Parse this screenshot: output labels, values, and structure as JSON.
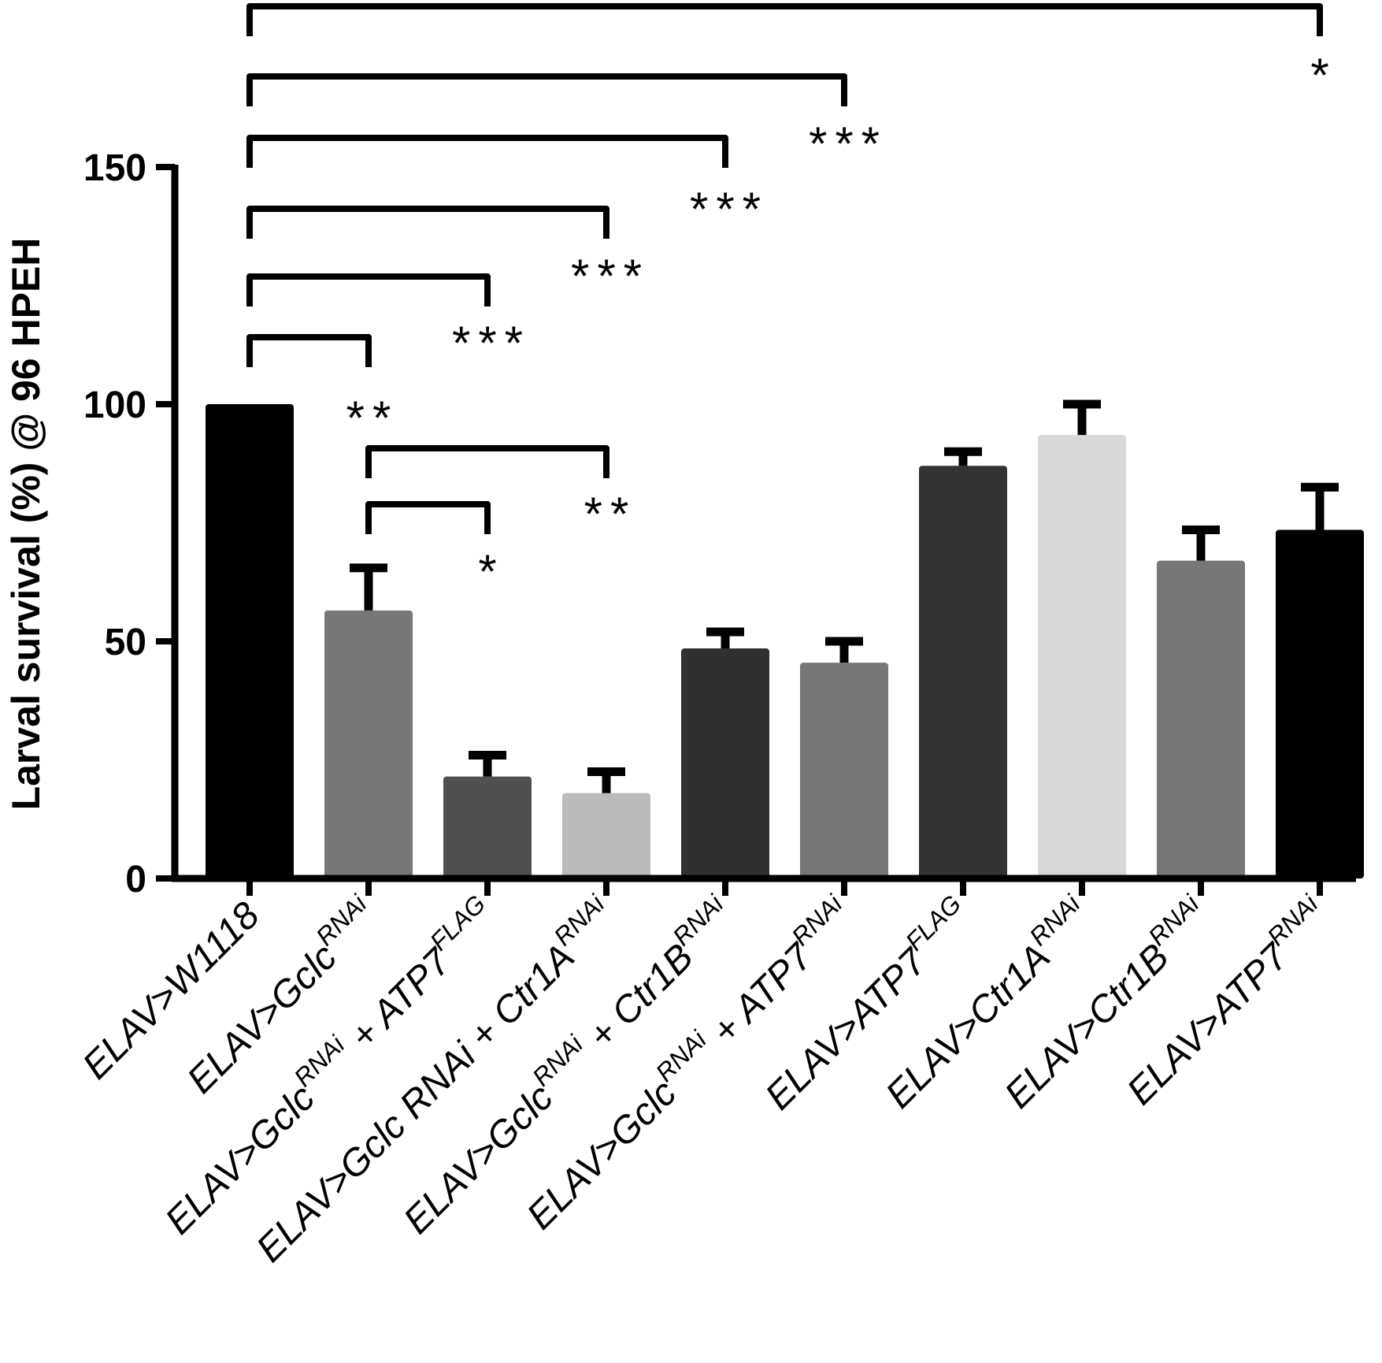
{
  "chart_data": {
    "type": "bar",
    "ylabel": "Larval survival (%) @ 96 HPEH",
    "ylim": [
      0,
      150
    ],
    "yticks": [
      "0",
      "50",
      "100",
      "150"
    ],
    "ytick_values": [
      0,
      50,
      100,
      150
    ],
    "categories": [
      {
        "base": "ELAV>W1118",
        "sup": "",
        "tail": ""
      },
      {
        "base": "ELAV>Gclc",
        "sup": "RNAi",
        "tail": ""
      },
      {
        "base": "ELAV>Gclc",
        "sup": "RNAi",
        "tail": " + ATP7",
        "sup2": "FLAG"
      },
      {
        "base": "ELAV>Gclc RNAi + Ctr1A",
        "sup": "RNAi",
        "tail": ""
      },
      {
        "base": "ELAV>Gclc",
        "sup": "RNAi",
        "tail": " + Ctr1B",
        "sup2": "RNAi"
      },
      {
        "base": "ELAV>Gclc",
        "sup": "RNAi",
        "tail": " + ATP7",
        "sup2": "RNAi"
      },
      {
        "base": "ELAV>ATP7",
        "sup": "FLAG",
        "tail": ""
      },
      {
        "base": "ELAV>Ctr1A",
        "sup": "RNAi",
        "tail": ""
      },
      {
        "base": "ELAV>Ctr1B",
        "sup": "RNAi",
        "tail": ""
      },
      {
        "base": "ELAV>ATP7",
        "sup": "RNAi",
        "tail": ""
      }
    ],
    "values": [
      100,
      56.5,
      21.5,
      18,
      48.5,
      45.5,
      87,
      93.5,
      67,
      73.5
    ],
    "errors": [
      0,
      9,
      4.5,
      4.5,
      3.5,
      4.5,
      3,
      6.5,
      6.5,
      9
    ],
    "colors": [
      "#000000",
      "#777777",
      "#505050",
      "#bbbbbb",
      "#303030",
      "#777777",
      "#333333",
      "#d9d9d9",
      "#777777",
      "#000000"
    ],
    "significance": [
      {
        "from": 0,
        "to": 9,
        "label": "*"
      },
      {
        "from": 0,
        "to": 5,
        "label": "***"
      },
      {
        "from": 0,
        "to": 4,
        "label": "***"
      },
      {
        "from": 0,
        "to": 3,
        "label": "***"
      },
      {
        "from": 0,
        "to": 2,
        "label": "***"
      },
      {
        "from": 0,
        "to": 1,
        "label": "**"
      },
      {
        "from": 1,
        "to": 3,
        "label": "**"
      },
      {
        "from": 1,
        "to": 2,
        "label": "*"
      }
    ]
  }
}
